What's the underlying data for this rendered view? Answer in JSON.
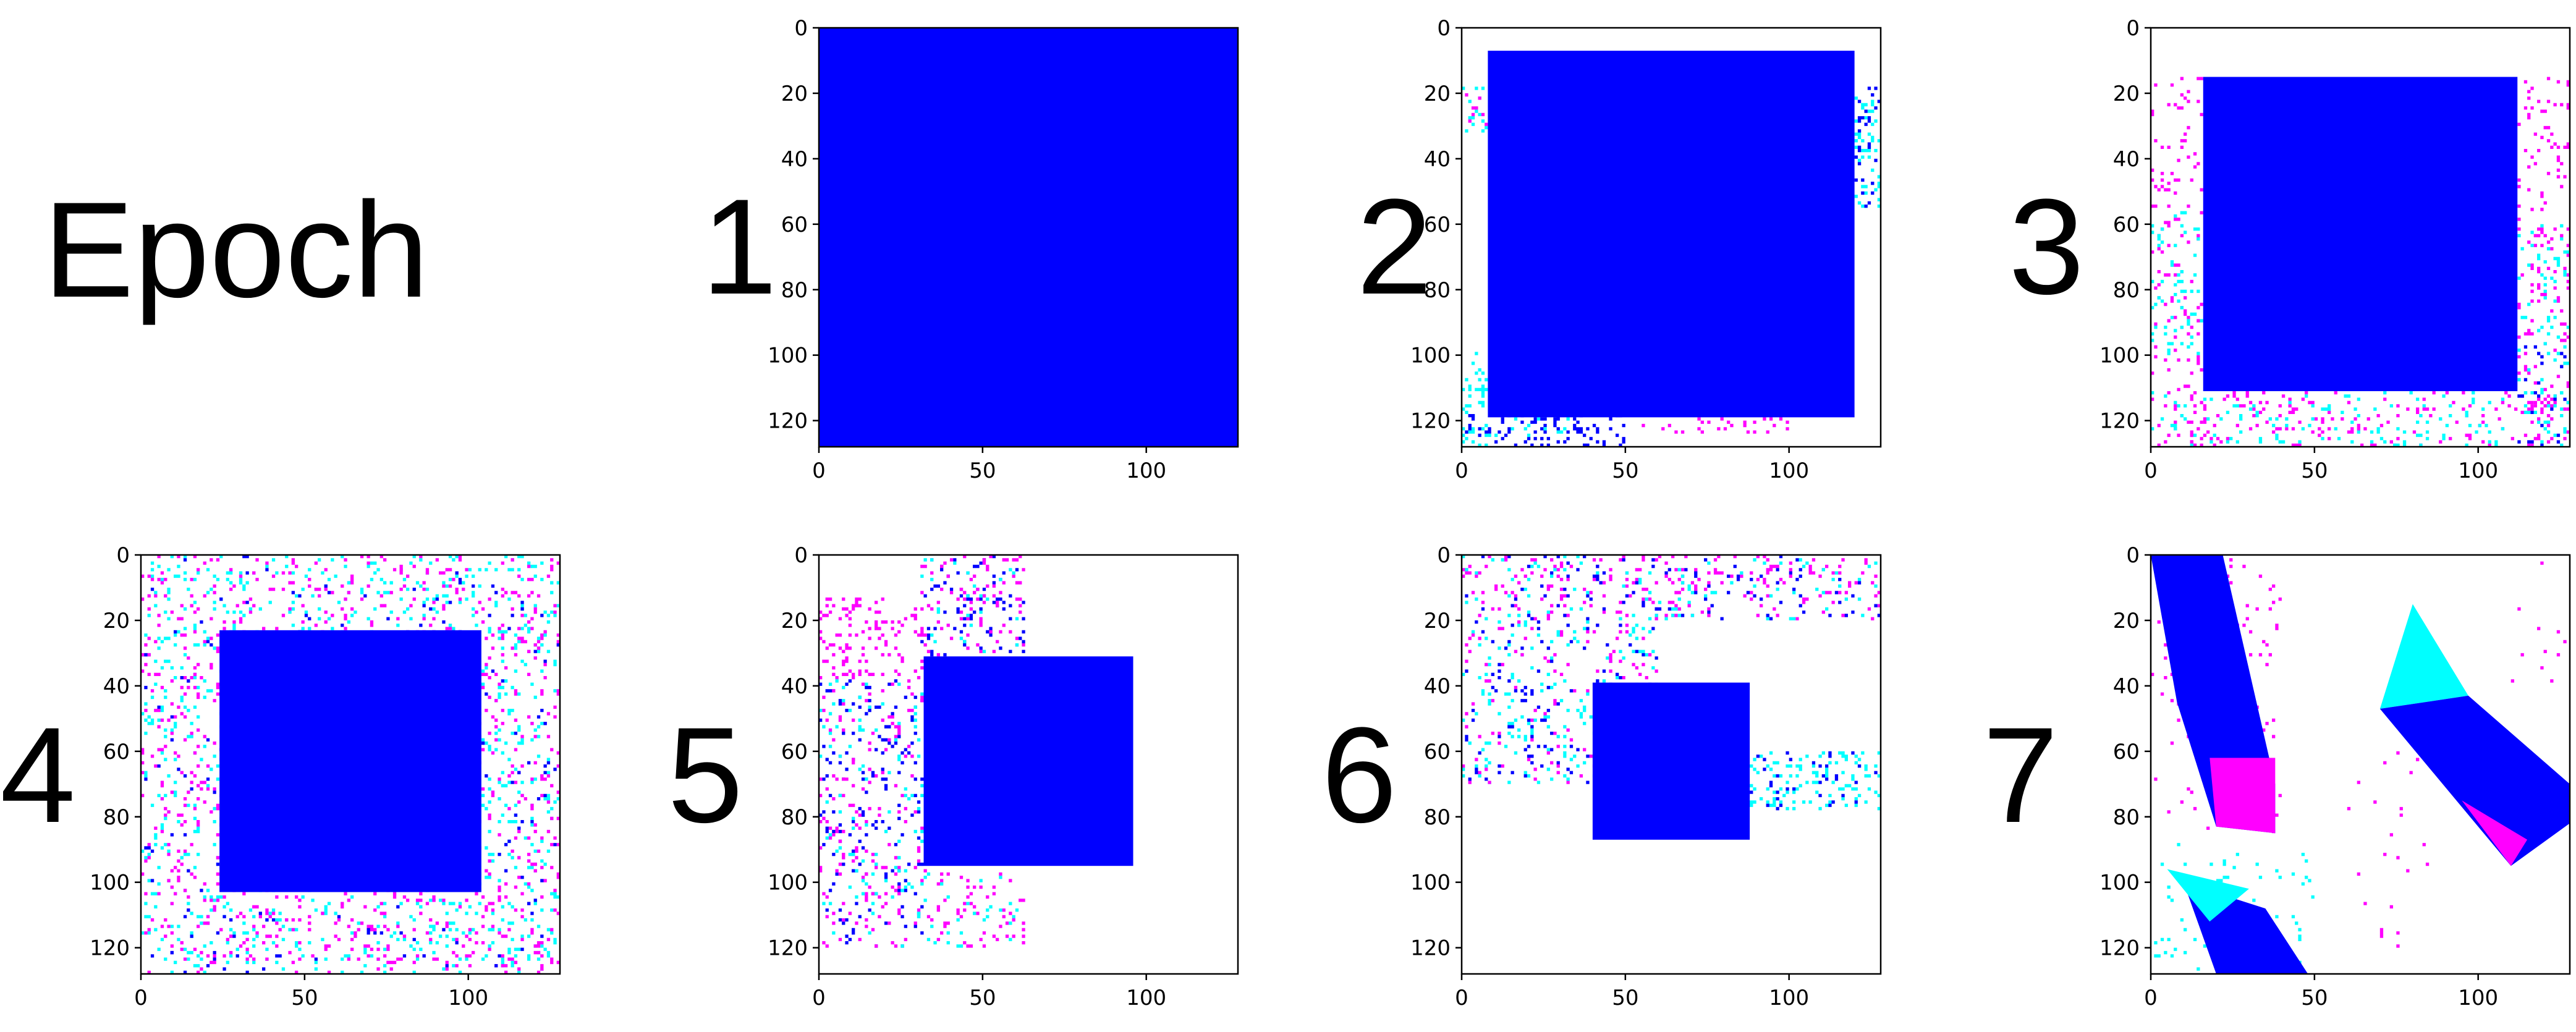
{
  "heading": "Epoch",
  "colors": {
    "blue": "#0000ff",
    "cyan": "#00ffff",
    "magenta": "#ff00ff",
    "background": "#ffffff",
    "axis": "#000000"
  },
  "chart_data": [
    {
      "type": "heatmap",
      "epoch_label": "1",
      "xlim": [
        0,
        128
      ],
      "ylim": [
        128,
        0
      ],
      "xticks": [
        0,
        50,
        100
      ],
      "yticks": [
        0,
        20,
        40,
        60,
        80,
        100,
        120
      ],
      "blue_square": [
        0,
        0,
        128,
        128
      ],
      "noise": []
    },
    {
      "type": "heatmap",
      "epoch_label": "2",
      "xlim": [
        0,
        128
      ],
      "ylim": [
        128,
        0
      ],
      "xticks": [
        0,
        50,
        100
      ],
      "yticks": [
        0,
        20,
        40,
        60,
        80,
        100,
        120
      ],
      "blue_square": [
        8,
        7,
        120,
        119
      ],
      "noise": [
        {
          "x0": 0,
          "y0": 18,
          "x1": 8,
          "y1": 32,
          "color": "cyan",
          "density": 0.5
        },
        {
          "x0": 0,
          "y0": 18,
          "x1": 8,
          "y1": 32,
          "color": "magenta",
          "density": 0.3
        },
        {
          "x0": 0,
          "y0": 99,
          "x1": 8,
          "y1": 128,
          "color": "cyan",
          "density": 0.8
        },
        {
          "x0": 0,
          "y0": 118,
          "x1": 50,
          "y1": 128,
          "color": "blue",
          "density": 0.7
        },
        {
          "x0": 8,
          "y0": 118,
          "x1": 35,
          "y1": 125,
          "color": "cyan",
          "density": 0.4
        },
        {
          "x0": 55,
          "y0": 119,
          "x1": 100,
          "y1": 124,
          "color": "magenta",
          "density": 0.5
        },
        {
          "x0": 120,
          "y0": 18,
          "x1": 128,
          "y1": 55,
          "color": "cyan",
          "density": 0.7
        },
        {
          "x0": 120,
          "y0": 18,
          "x1": 128,
          "y1": 55,
          "color": "blue",
          "density": 0.4
        }
      ]
    },
    {
      "type": "heatmap",
      "epoch_label": "3",
      "xlim": [
        0,
        128
      ],
      "ylim": [
        128,
        0
      ],
      "xticks": [
        0,
        50,
        100
      ],
      "yticks": [
        0,
        20,
        40,
        60,
        80,
        100,
        120
      ],
      "blue_square": [
        16,
        15,
        112,
        111
      ],
      "noise": [
        {
          "x0": 0,
          "y0": 15,
          "x1": 16,
          "y1": 128,
          "color": "magenta",
          "density": 0.3
        },
        {
          "x0": 0,
          "y0": 55,
          "x1": 16,
          "y1": 100,
          "color": "cyan",
          "density": 0.35
        },
        {
          "x0": 0,
          "y0": 111,
          "x1": 128,
          "y1": 128,
          "color": "magenta",
          "density": 0.3
        },
        {
          "x0": 0,
          "y0": 111,
          "x1": 128,
          "y1": 128,
          "color": "cyan",
          "density": 0.25
        },
        {
          "x0": 112,
          "y0": 15,
          "x1": 128,
          "y1": 128,
          "color": "magenta",
          "density": 0.35
        },
        {
          "x0": 112,
          "y0": 60,
          "x1": 128,
          "y1": 125,
          "color": "cyan",
          "density": 0.25
        },
        {
          "x0": 112,
          "y0": 95,
          "x1": 128,
          "y1": 128,
          "color": "blue",
          "density": 0.2
        }
      ]
    },
    {
      "type": "heatmap",
      "epoch_label": "4",
      "xlim": [
        0,
        128
      ],
      "ylim": [
        128,
        0
      ],
      "xticks": [
        0,
        50,
        100
      ],
      "yticks": [
        0,
        20,
        40,
        60,
        80,
        100,
        120
      ],
      "blue_square": [
        24,
        23,
        104,
        103
      ],
      "noise": [
        {
          "x0": 0,
          "y0": 0,
          "x1": 128,
          "y1": 128,
          "color": "cyan",
          "density": 0.3
        },
        {
          "x0": 0,
          "y0": 0,
          "x1": 128,
          "y1": 128,
          "color": "magenta",
          "density": 0.28
        },
        {
          "x0": 0,
          "y0": 0,
          "x1": 128,
          "y1": 128,
          "color": "blue",
          "density": 0.05
        }
      ]
    },
    {
      "type": "heatmap",
      "epoch_label": "5",
      "xlim": [
        0,
        128
      ],
      "ylim": [
        128,
        0
      ],
      "xticks": [
        0,
        50,
        100
      ],
      "yticks": [
        0,
        20,
        40,
        60,
        80,
        100,
        120
      ],
      "blue_square": [
        32,
        31,
        96,
        95
      ],
      "noise": [
        {
          "x0": 31,
          "y0": 0,
          "x1": 63,
          "y1": 31,
          "color": "blue",
          "density": 0.3
        },
        {
          "x0": 31,
          "y0": 0,
          "x1": 63,
          "y1": 31,
          "color": "magenta",
          "density": 0.35
        },
        {
          "x0": 31,
          "y0": 0,
          "x1": 63,
          "y1": 31,
          "color": "cyan",
          "density": 0.1
        },
        {
          "x0": 0,
          "y0": 13,
          "x1": 32,
          "y1": 38,
          "color": "magenta",
          "density": 0.6
        },
        {
          "x0": 0,
          "y0": 38,
          "x1": 32,
          "y1": 120,
          "color": "blue",
          "density": 0.25
        },
        {
          "x0": 0,
          "y0": 38,
          "x1": 32,
          "y1": 120,
          "color": "magenta",
          "density": 0.25
        },
        {
          "x0": 0,
          "y0": 38,
          "x1": 32,
          "y1": 120,
          "color": "cyan",
          "density": 0.15
        },
        {
          "x0": 32,
          "y0": 95,
          "x1": 63,
          "y1": 120,
          "color": "magenta",
          "density": 0.3
        },
        {
          "x0": 32,
          "y0": 95,
          "x1": 63,
          "y1": 120,
          "color": "cyan",
          "density": 0.15
        }
      ]
    },
    {
      "type": "heatmap",
      "epoch_label": "6",
      "xlim": [
        0,
        128
      ],
      "ylim": [
        128,
        0
      ],
      "xticks": [
        0,
        50,
        100
      ],
      "yticks": [
        0,
        20,
        40,
        60,
        80,
        100,
        120
      ],
      "blue_square": [
        40,
        39,
        88,
        87
      ],
      "noise": [
        {
          "x0": 0,
          "y0": 0,
          "x1": 128,
          "y1": 20,
          "color": "magenta",
          "density": 0.35
        },
        {
          "x0": 0,
          "y0": 0,
          "x1": 128,
          "y1": 20,
          "color": "cyan",
          "density": 0.15
        },
        {
          "x0": 0,
          "y0": 0,
          "x1": 128,
          "y1": 20,
          "color": "blue",
          "density": 0.15
        },
        {
          "x0": 0,
          "y0": 20,
          "x1": 60,
          "y1": 70,
          "color": "cyan",
          "density": 0.25
        },
        {
          "x0": 0,
          "y0": 20,
          "x1": 60,
          "y1": 70,
          "color": "magenta",
          "density": 0.15
        },
        {
          "x0": 0,
          "y0": 20,
          "x1": 60,
          "y1": 70,
          "color": "blue",
          "density": 0.15
        },
        {
          "x0": 88,
          "y0": 60,
          "x1": 128,
          "y1": 78,
          "color": "cyan",
          "density": 0.6
        },
        {
          "x0": 88,
          "y0": 60,
          "x1": 128,
          "y1": 78,
          "color": "blue",
          "density": 0.2
        }
      ]
    },
    {
      "type": "heatmap",
      "epoch_label": "7",
      "xlim": [
        0,
        128
      ],
      "ylim": [
        128,
        0
      ],
      "xticks": [
        0,
        50,
        100
      ],
      "yticks": [
        0,
        20,
        40,
        60,
        80,
        100,
        120
      ],
      "blue_square": null,
      "polygons": [
        {
          "points": [
            [
              0,
              0
            ],
            [
              22,
              0
            ],
            [
              38,
              70
            ],
            [
              38,
              85
            ],
            [
              20,
              83
            ],
            [
              8,
              45
            ]
          ],
          "color": "blue"
        },
        {
          "points": [
            [
              18,
              62
            ],
            [
              38,
              62
            ],
            [
              38,
              85
            ],
            [
              20,
              83
            ]
          ],
          "color": "magenta"
        },
        {
          "points": [
            [
              80,
              15
            ],
            [
              97,
              43
            ],
            [
              70,
              47
            ]
          ],
          "color": "cyan"
        },
        {
          "points": [
            [
              70,
              47
            ],
            [
              97,
              43
            ],
            [
              128,
              70
            ],
            [
              128,
              82
            ],
            [
              110,
              95
            ]
          ],
          "color": "blue"
        },
        {
          "points": [
            [
              95,
              75
            ],
            [
              115,
              87
            ],
            [
              110,
              95
            ]
          ],
          "color": "magenta"
        },
        {
          "points": [
            [
              10,
              100
            ],
            [
              35,
              108
            ],
            [
              48,
              128
            ],
            [
              20,
              128
            ]
          ],
          "color": "blue"
        },
        {
          "points": [
            [
              5,
              96
            ],
            [
              30,
              102
            ],
            [
              18,
              112
            ]
          ],
          "color": "cyan"
        }
      ],
      "noise": [
        {
          "x0": 0,
          "y0": 0,
          "x1": 40,
          "y1": 85,
          "color": "magenta",
          "density": 0.12
        },
        {
          "x0": 0,
          "y0": 88,
          "x1": 50,
          "y1": 128,
          "color": "cyan",
          "density": 0.15
        },
        {
          "x0": 60,
          "y0": 60,
          "x1": 85,
          "y1": 120,
          "color": "magenta",
          "density": 0.06
        },
        {
          "x0": 110,
          "y0": 0,
          "x1": 128,
          "y1": 40,
          "color": "magenta",
          "density": 0.06
        }
      ]
    }
  ]
}
